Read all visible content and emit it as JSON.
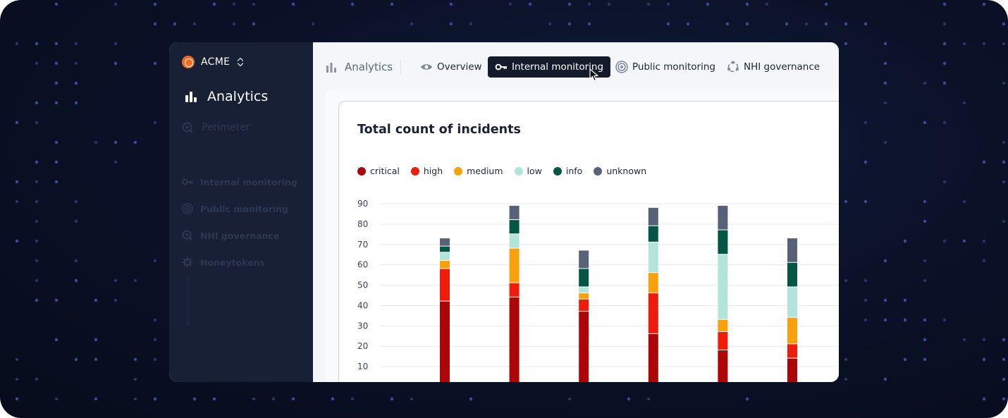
{
  "sidebar": {
    "org_name": "ACME",
    "active_item": "Analytics",
    "items": [
      {
        "label": "Perimeter",
        "icon": "perimeter-icon"
      },
      {
        "label": "Internal monitoring",
        "icon": "key-icon"
      },
      {
        "label": "Public monitoring",
        "icon": "radar-icon"
      },
      {
        "label": "NHI governance",
        "icon": "nhi-icon"
      },
      {
        "label": "Honeytokens",
        "icon": "gear-icon"
      }
    ]
  },
  "header": {
    "breadcrumb": "Analytics",
    "tabs": [
      {
        "label": "Overview",
        "icon": "eye-icon",
        "active": false
      },
      {
        "label": "Internal monitoring",
        "icon": "key-icon",
        "active": true
      },
      {
        "label": "Public monitoring",
        "icon": "radar-icon",
        "active": false
      },
      {
        "label": "NHI governance",
        "icon": "nhi-icon",
        "active": false
      }
    ]
  },
  "card": {
    "title": "Total count of incidents"
  },
  "colors": {
    "critical": "#ad0606",
    "high": "#ee1c0b",
    "medium": "#f8a10d",
    "low": "#b2e4d9",
    "info": "#035644",
    "unknown": "#586276",
    "active_tab": "#141c2c",
    "sidebar": "#172034"
  },
  "chart_data": {
    "type": "bar",
    "stacked": true,
    "title": "Total count of incidents",
    "categories": [
      "",
      "",
      "",
      "",
      "",
      ""
    ],
    "yticks": [
      90,
      80,
      70,
      60,
      50,
      40,
      30,
      20,
      10
    ],
    "ylim": [
      0,
      90
    ],
    "grid": true,
    "legend_position": "top-left",
    "series": [
      {
        "name": "critical",
        "values": [
          42,
          44,
          37,
          26,
          18,
          14
        ]
      },
      {
        "name": "high",
        "values": [
          16,
          7,
          6,
          20,
          9,
          7
        ]
      },
      {
        "name": "medium",
        "values": [
          4,
          17,
          3,
          10,
          6,
          13
        ]
      },
      {
        "name": "low",
        "values": [
          4,
          7,
          3,
          15,
          32,
          15
        ]
      },
      {
        "name": "info",
        "values": [
          3,
          7,
          9,
          8,
          12,
          12
        ]
      },
      {
        "name": "unknown",
        "values": [
          4,
          7,
          9,
          9,
          12,
          12
        ]
      }
    ]
  }
}
